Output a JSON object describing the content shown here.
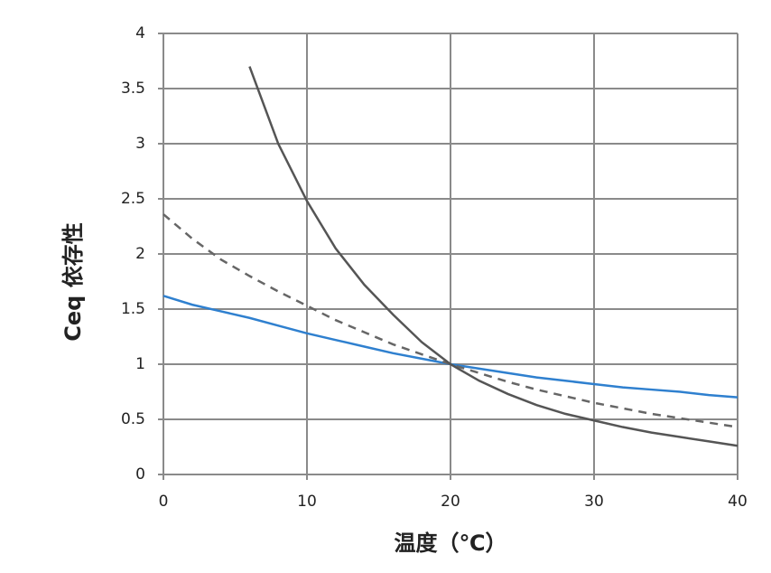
{
  "chart_data": {
    "type": "line",
    "x_label": "温度（℃）",
    "y_label": "Ceq 依存性",
    "x": [
      0,
      2,
      4,
      6,
      8,
      10,
      12,
      14,
      16,
      18,
      20,
      22,
      24,
      26,
      28,
      30,
      32,
      34,
      36,
      38,
      40
    ],
    "series": [
      {
        "color": "#2f80cf",
        "dash": false,
        "values": [
          1.62,
          1.54,
          1.48,
          1.42,
          1.35,
          1.28,
          1.22,
          1.16,
          1.1,
          1.05,
          1.0,
          0.96,
          0.92,
          0.88,
          0.85,
          0.82,
          0.79,
          0.77,
          0.75,
          0.72,
          0.7
        ]
      },
      {
        "color": "#666666",
        "dash": true,
        "values": [
          2.36,
          2.14,
          1.95,
          1.8,
          1.66,
          1.53,
          1.4,
          1.29,
          1.18,
          1.09,
          1.0,
          0.92,
          0.84,
          0.77,
          0.71,
          0.65,
          0.6,
          0.55,
          0.51,
          0.47,
          0.43
        ]
      },
      {
        "color": "#555555",
        "dash": false,
        "values": [
          null,
          null,
          null,
          3.7,
          3.0,
          2.48,
          2.05,
          1.72,
          1.45,
          1.2,
          1.0,
          0.85,
          0.73,
          0.63,
          0.55,
          0.49,
          0.43,
          0.38,
          0.34,
          0.3,
          0.26
        ]
      }
    ],
    "xlim": [
      0,
      40
    ],
    "ylim": [
      0,
      4
    ],
    "xticks": [
      0,
      10,
      20,
      30,
      40
    ],
    "yticks": [
      0,
      0.5,
      1,
      1.5,
      2,
      2.5,
      3,
      3.5,
      4
    ],
    "grid": true
  }
}
